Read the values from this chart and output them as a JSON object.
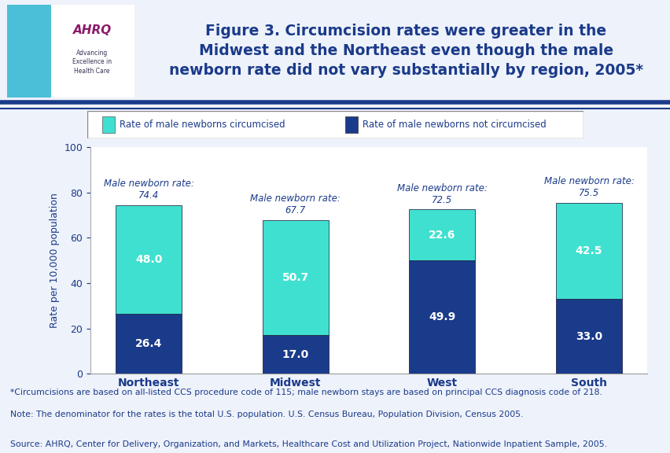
{
  "categories": [
    "Northeast",
    "Midwest",
    "West",
    "South"
  ],
  "circumcised": [
    48.0,
    50.7,
    22.6,
    42.5
  ],
  "not_circumcised": [
    26.4,
    17.0,
    49.9,
    33.0
  ],
  "male_newborn_rates": [
    74.4,
    67.7,
    72.5,
    75.5
  ],
  "color_circumcised": "#40E0D0",
  "color_not_circumcised": "#1A3A8A",
  "bar_width": 0.45,
  "ylim": [
    0,
    100
  ],
  "yticks": [
    0,
    20,
    40,
    60,
    80,
    100
  ],
  "ylabel": "Rate per 10,000 population",
  "legend_label_1": "Rate of male newborns circumcised",
  "legend_label_2": "Rate of male newborns not circumcised",
  "title_line1": "Figure 3. Circumcision rates were greater in the",
  "title_line2": "Midwest and the Northeast even though the male",
  "title_line3": "newborn rate did not vary substantially by region, 2005*",
  "title_color": "#1A3A8A",
  "title_fontsize": 13.5,
  "footnote1": "*Circumcisions are based on all-listed CCS procedure code of 115; male newborn stays are based on principal CCS diagnosis code of 218.",
  "footnote2": "Note: The denominator for the rates is the total U.S. population. U.S. Census Bureau, Population Division, Census 2005.",
  "footnote3": "Source: AHRQ, Center for Delivery, Organization, and Markets, Healthcare Cost and Utilization Project, Nationwide Inpatient Sample, 2005.",
  "background_color": "#EEF2FA",
  "chart_bg": "#FFFFFF",
  "header_bg": "#FFFFFF",
  "border_color": "#1A3A8A",
  "label_fontsize": 10,
  "axis_label_fontsize": 9,
  "newborn_label_fontsize": 8.5,
  "tick_label_color": "#1A3A8A",
  "footnote_color": "#1A3A8A"
}
